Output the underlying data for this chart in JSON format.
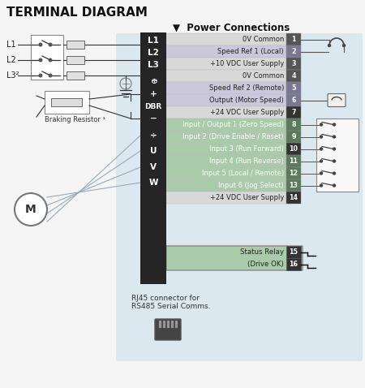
{
  "title": "TERMINAL DIAGRAM",
  "power_connections_label": "▼  Power Connections",
  "bg_color": "#f5f5f5",
  "panel_bg": "#dce8f0",
  "terminal_bg": "#252525",
  "rows": [
    {
      "num": "1",
      "label": "0V Common",
      "label_bg": "#d8d8d8",
      "num_bg": "#555555",
      "label_color": "#222222",
      "num_color": "#ffffff"
    },
    {
      "num": "2",
      "label": "Speed Ref 1 (Local)",
      "label_bg": "#ccc8dc",
      "num_bg": "#7a7890",
      "label_color": "#222222",
      "num_color": "#ffffff"
    },
    {
      "num": "3",
      "label": "+10 VDC User Supply",
      "label_bg": "#d8d8d8",
      "num_bg": "#555555",
      "label_color": "#222222",
      "num_color": "#ffffff"
    },
    {
      "num": "4",
      "label": "0V Common",
      "label_bg": "#d8d8d8",
      "num_bg": "#555555",
      "label_color": "#222222",
      "num_color": "#ffffff"
    },
    {
      "num": "5",
      "label": "Speed Ref 2 (Remote)",
      "label_bg": "#ccc8dc",
      "num_bg": "#7a7890",
      "label_color": "#222222",
      "num_color": "#ffffff"
    },
    {
      "num": "6",
      "label": "Output (Motor Speed)",
      "label_bg": "#ccc8dc",
      "num_bg": "#7a7890",
      "label_color": "#222222",
      "num_color": "#ffffff"
    },
    {
      "num": "7",
      "label": "+24 VDC User Supply",
      "label_bg": "#d8d8d8",
      "num_bg": "#333333",
      "label_color": "#222222",
      "num_color": "#ffffff"
    },
    {
      "num": "8",
      "label": "Input / Output 1 (Zero Speed)",
      "label_bg": "#aacbaa",
      "num_bg": "#5a7a5a",
      "label_color": "#ffffff",
      "num_color": "#ffffff"
    },
    {
      "num": "9",
      "label": "Input 2 (Drive Enable / Reset)",
      "label_bg": "#aacbaa",
      "num_bg": "#5a7a5a",
      "label_color": "#ffffff",
      "num_color": "#ffffff"
    },
    {
      "num": "10",
      "label": "Input 3 (Run Forward)",
      "label_bg": "#aacbaa",
      "num_bg": "#333333",
      "label_color": "#ffffff",
      "num_color": "#ffffff"
    },
    {
      "num": "11",
      "label": "Input 4 (Run Reverse)",
      "label_bg": "#aacbaa",
      "num_bg": "#5a7a5a",
      "label_color": "#ffffff",
      "num_color": "#ffffff"
    },
    {
      "num": "12",
      "label": "Input 5 (Local / Remote)",
      "label_bg": "#aacbaa",
      "num_bg": "#5a7a5a",
      "label_color": "#ffffff",
      "num_color": "#ffffff"
    },
    {
      "num": "13",
      "label": "Input 6 (Jog Select)",
      "label_bg": "#aacbaa",
      "num_bg": "#5a7a5a",
      "label_color": "#ffffff",
      "num_color": "#ffffff"
    },
    {
      "num": "14",
      "label": "+24 VDC User Supply",
      "label_bg": "#d8d8d8",
      "num_bg": "#333333",
      "label_color": "#222222",
      "num_color": "#ffffff"
    }
  ],
  "relay_rows": [
    {
      "num": "15",
      "label": "Status Relay",
      "label_bg": "#aacbaa",
      "num_bg": "#333333",
      "label_color": "#222222",
      "num_color": "#ffffff"
    },
    {
      "num": "16",
      "label": "(Drive OK)",
      "label_bg": "#aacbaa",
      "num_bg": "#333333",
      "label_color": "#222222",
      "num_color": "#ffffff"
    }
  ],
  "terminal_labels": [
    "L1",
    "L2",
    "L3",
    "⊕",
    "+",
    "DBR",
    "−",
    "÷",
    "U",
    "V",
    "W"
  ],
  "rj45_label": "RJ45 connector for\nRS485 Serial Comms.",
  "braking_label": "Braking Resistor ¹"
}
